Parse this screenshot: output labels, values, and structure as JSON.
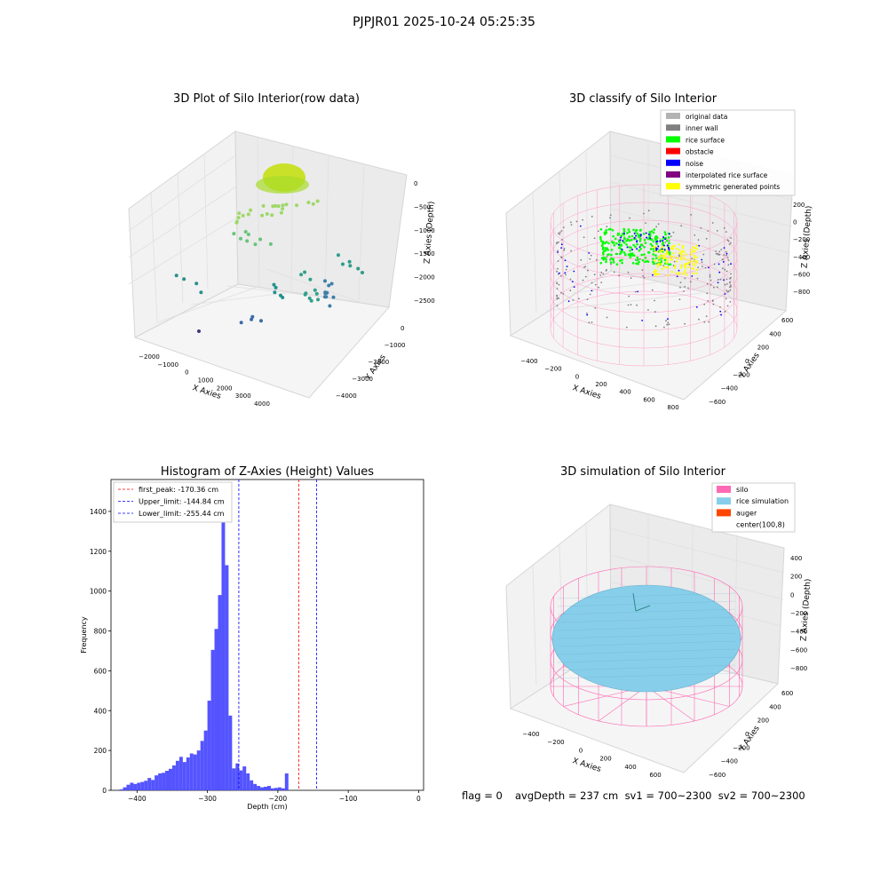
{
  "suptitle": "PJPJR01 2025-10-24 05:25:35",
  "panels": {
    "raw": {
      "title": "3D Plot of Silo Interior(row data)",
      "xlabel": "X Axies",
      "ylabel": "Y Axies",
      "zlabel": "Z Axies (Depth)",
      "xticks": [
        "−2000",
        "−1000",
        "0",
        "1000",
        "2000",
        "3000",
        "4000"
      ],
      "yticks": [
        "−4000",
        "−3000",
        "−2000",
        "−1000",
        "0"
      ],
      "zticks": [
        "−2500",
        "−2000",
        "−1500",
        "−1000",
        "−500",
        "0"
      ]
    },
    "classify": {
      "title": "3D classify of Silo Interior",
      "xlabel": "X Axies",
      "ylabel": "Y Axies",
      "zlabel": "Z Axies (Depth)",
      "xticks": [
        "−400",
        "−200",
        "0",
        "200",
        "400",
        "600",
        "800"
      ],
      "yticks": [
        "−600",
        "−400",
        "−200",
        "0",
        "200",
        "400",
        "600"
      ],
      "zticks": [
        "−800",
        "−600",
        "−400",
        "−200",
        "0",
        "200"
      ],
      "legend": [
        {
          "label": "original data",
          "color": "#b3b3b3"
        },
        {
          "label": "inner wall",
          "color": "#808080"
        },
        {
          "label": "rice surface",
          "color": "#00ff00"
        },
        {
          "label": "obstacle",
          "color": "#ff0000"
        },
        {
          "label": "noise",
          "color": "#0000ff"
        },
        {
          "label": "interpolated rice surface",
          "color": "#800080"
        },
        {
          "label": "symmetric generated points",
          "color": "#ffff00"
        }
      ]
    },
    "simulation": {
      "title": "3D simulation of Silo Interior",
      "xlabel": "X Axies",
      "ylabel": "Y Axies",
      "zlabel": "Z Axies (Depth)",
      "xticks": [
        "−400",
        "−200",
        "0",
        "200",
        "400",
        "600"
      ],
      "yticks": [
        "−600",
        "−400",
        "−200",
        "0",
        "200",
        "400",
        "600"
      ],
      "zticks": [
        "−800",
        "−600",
        "−400",
        "−200",
        "0",
        "200",
        "400"
      ],
      "legend": [
        {
          "label": "silo",
          "color": "#ff69b4"
        },
        {
          "label": "rice simulation",
          "color": "#87ceeb"
        },
        {
          "label": "auger",
          "color": "#ff4500"
        },
        {
          "label": "center(100,8)",
          "color": "none"
        }
      ]
    }
  },
  "footer": {
    "flag": "flag = 0",
    "stats": "avgDepth = 237 cm  sv1 = 700~2300  sv2 = 700~2300"
  },
  "chart_data": {
    "type": "bar",
    "title": "Histogram of Z-Axies (Height) Values",
    "xlabel": "Depth (cm)",
    "ylabel": "Frequency",
    "xlim": [
      -437,
      7
    ],
    "ylim": [
      0,
      1560
    ],
    "xticks": [
      -400,
      -300,
      -200,
      -100,
      0
    ],
    "yticks": [
      0,
      200,
      400,
      600,
      800,
      1000,
      1200,
      1400
    ],
    "bin_start": -425,
    "bin_width": 5,
    "values": [
      5,
      15,
      28,
      38,
      32,
      38,
      42,
      48,
      62,
      52,
      75,
      85,
      88,
      98,
      108,
      125,
      148,
      168,
      142,
      165,
      185,
      180,
      200,
      248,
      300,
      450,
      705,
      810,
      980,
      1490,
      1130,
      375,
      110,
      135,
      100,
      120,
      85,
      50,
      32,
      22,
      15,
      18,
      22,
      10,
      12,
      15,
      10,
      85
    ],
    "color": "#4b4bff",
    "lines": [
      {
        "label": "first_peak: -170.36 cm",
        "x": -170.36,
        "color": "#ff0000"
      },
      {
        "label": "Upper_limit: -144.84 cm",
        "x": -144.84,
        "color": "#0000ff"
      },
      {
        "label": "Lower_limit: -255.44 cm",
        "x": -255.44,
        "color": "#0000ff"
      }
    ],
    "legend_position": "upper left"
  }
}
